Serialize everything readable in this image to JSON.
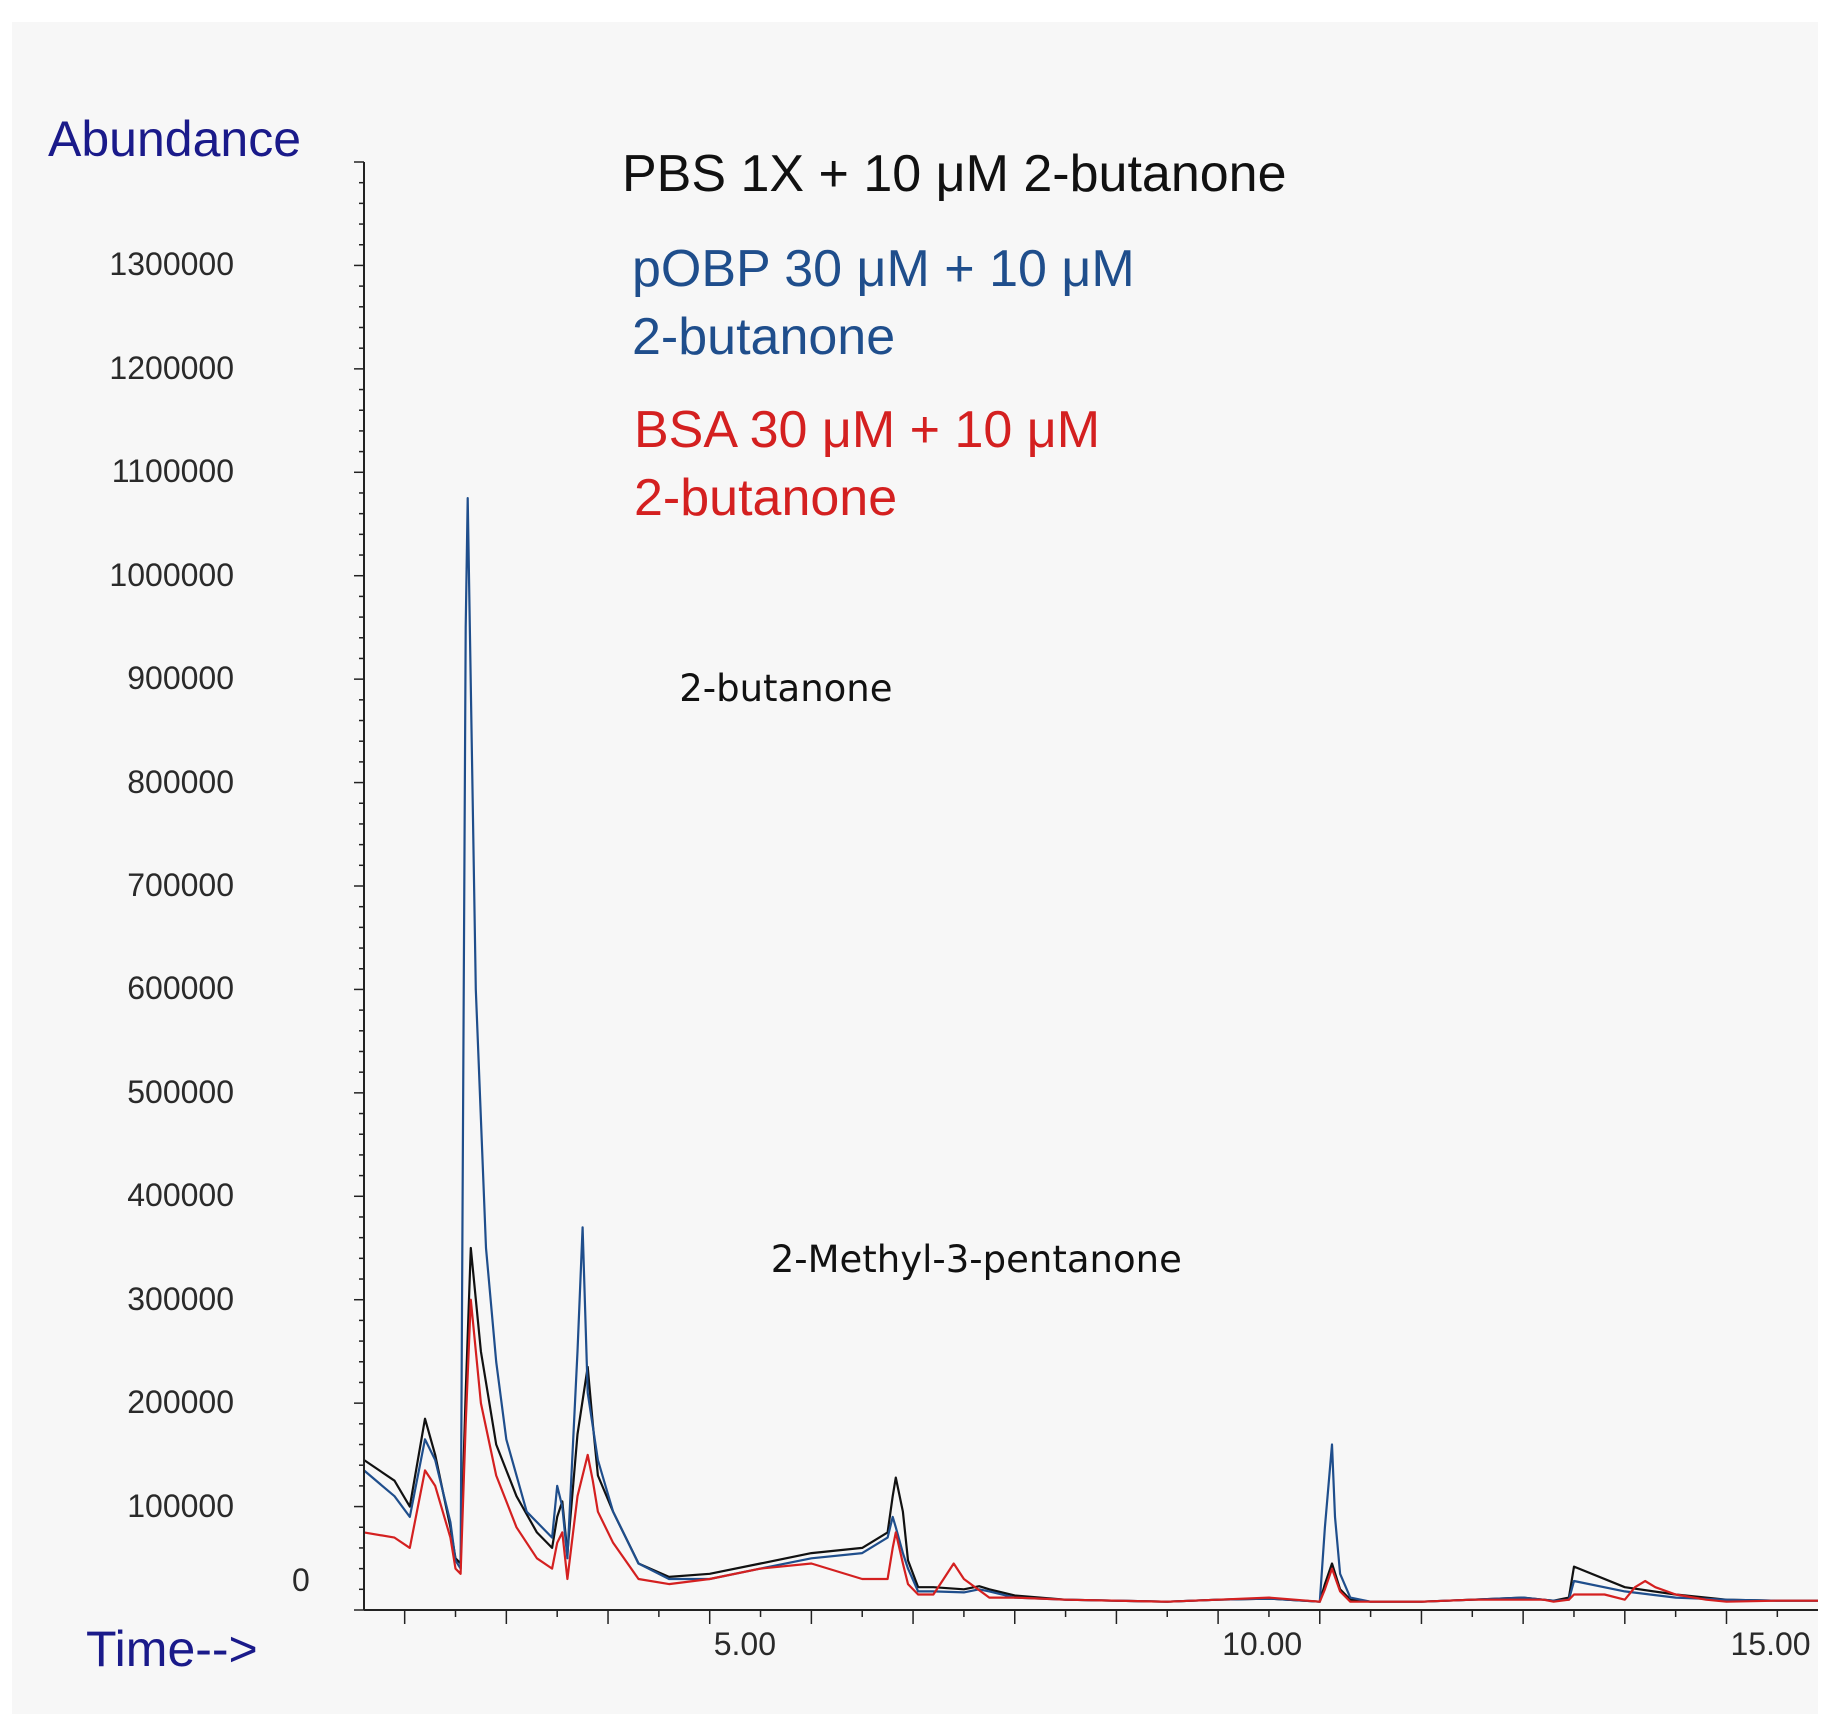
{
  "chart_data": {
    "type": "line",
    "ylabel": "Abundance",
    "xlabel": "Time-->",
    "xlim": [
      1.6,
      15.9
    ],
    "ylim": [
      0,
      1400000
    ],
    "yticks": [
      0,
      100000,
      200000,
      300000,
      400000,
      500000,
      600000,
      700000,
      800000,
      900000,
      1000000,
      1100000,
      1200000,
      1300000
    ],
    "xticks": [
      5.0,
      10.0,
      15.0
    ],
    "xtick_labels": [
      "5.00",
      "10.00",
      "15.00"
    ],
    "legend": {
      "placement": "top-center",
      "entries": [
        {
          "line1": "PBS 1X + 10 μM 2-butanone",
          "line2": ""
        },
        {
          "line1": "pOBP 30 μM + 10 μM",
          "line2": "2-butanone"
        },
        {
          "line1": "BSA 30 μM + 10 μM",
          "line2": "2-butanone"
        }
      ]
    },
    "annotations": [
      {
        "text": "2-butanone",
        "x": 4.7,
        "y": 890000
      },
      {
        "text": "2-Methyl-3-pentanone",
        "x": 5.6,
        "y": 338000
      }
    ],
    "series": [
      {
        "color": "#111111",
        "x": [
          1.6,
          1.9,
          2.05,
          2.2,
          2.3,
          2.45,
          2.5,
          2.55,
          2.6,
          2.65,
          2.75,
          2.9,
          3.1,
          3.3,
          3.45,
          3.5,
          3.55,
          3.6,
          3.7,
          3.8,
          3.85,
          3.9,
          4.05,
          4.3,
          4.6,
          5.0,
          5.5,
          6.0,
          6.5,
          6.75,
          6.8,
          6.83,
          6.9,
          6.95,
          7.05,
          7.2,
          7.5,
          7.65,
          7.75,
          8.0,
          8.5,
          9.5,
          10.0,
          10.5,
          11.0,
          11.05,
          11.12,
          11.2,
          11.3,
          11.5,
          12.0,
          12.5,
          13.0,
          13.2,
          13.3,
          13.45,
          13.5,
          14.0,
          14.5,
          15.0,
          15.5,
          15.9
        ],
        "y": [
          145000,
          125000,
          100000,
          185000,
          150000,
          80000,
          50000,
          45000,
          210000,
          350000,
          250000,
          160000,
          110000,
          75000,
          60000,
          90000,
          105000,
          55000,
          170000,
          235000,
          180000,
          130000,
          95000,
          45000,
          32000,
          35000,
          45000,
          55000,
          60000,
          75000,
          110000,
          128000,
          95000,
          48000,
          22000,
          22000,
          20000,
          23000,
          20000,
          14000,
          10000,
          8000,
          10000,
          11000,
          8000,
          25000,
          45000,
          20000,
          10000,
          8000,
          8000,
          10000,
          12000,
          10000,
          9000,
          12000,
          42000,
          22000,
          15000,
          10000,
          9000,
          9000
        ]
      },
      {
        "color": "#1f4e8c",
        "x": [
          1.6,
          1.9,
          2.05,
          2.2,
          2.3,
          2.45,
          2.5,
          2.55,
          2.6,
          2.62,
          2.7,
          2.8,
          2.9,
          3.0,
          3.2,
          3.45,
          3.5,
          3.55,
          3.6,
          3.7,
          3.75,
          3.8,
          3.9,
          4.05,
          4.3,
          4.6,
          5.0,
          5.5,
          6.0,
          6.5,
          6.75,
          6.8,
          6.83,
          6.9,
          6.95,
          7.05,
          7.2,
          7.5,
          7.65,
          7.75,
          8.0,
          8.5,
          9.5,
          10.0,
          10.5,
          11.0,
          11.05,
          11.12,
          11.15,
          11.2,
          11.3,
          11.5,
          12.0,
          12.5,
          13.0,
          13.2,
          13.3,
          13.45,
          13.5,
          14.0,
          14.5,
          15.0,
          15.5,
          15.9
        ],
        "y": [
          135000,
          110000,
          90000,
          165000,
          145000,
          85000,
          48000,
          40000,
          950000,
          1075000,
          600000,
          350000,
          240000,
          165000,
          95000,
          70000,
          120000,
          100000,
          50000,
          250000,
          370000,
          210000,
          145000,
          95000,
          45000,
          30000,
          30000,
          40000,
          50000,
          55000,
          70000,
          90000,
          80000,
          55000,
          40000,
          18000,
          18000,
          17000,
          20000,
          18000,
          12000,
          10000,
          8000,
          10000,
          11000,
          8000,
          80000,
          160000,
          90000,
          35000,
          12000,
          8000,
          8000,
          10000,
          12000,
          10000,
          9000,
          10000,
          28000,
          18000,
          12000,
          10000,
          9000,
          9000
        ]
      },
      {
        "color": "#d42020",
        "x": [
          1.6,
          1.9,
          2.05,
          2.2,
          2.3,
          2.45,
          2.5,
          2.55,
          2.6,
          2.65,
          2.75,
          2.9,
          3.1,
          3.3,
          3.45,
          3.5,
          3.55,
          3.6,
          3.7,
          3.8,
          3.85,
          3.9,
          4.05,
          4.3,
          4.6,
          5.0,
          5.5,
          6.0,
          6.5,
          6.75,
          6.8,
          6.83,
          6.9,
          6.95,
          7.05,
          7.2,
          7.3,
          7.4,
          7.5,
          7.75,
          8.0,
          8.5,
          9.5,
          10.0,
          10.5,
          11.0,
          11.05,
          11.12,
          11.2,
          11.3,
          11.5,
          12.0,
          12.5,
          13.0,
          13.2,
          13.3,
          13.45,
          13.5,
          13.8,
          14.0,
          14.1,
          14.2,
          14.3,
          14.5,
          14.8,
          15.0,
          15.5,
          15.9
        ],
        "y": [
          75000,
          70000,
          60000,
          135000,
          120000,
          70000,
          40000,
          35000,
          180000,
          300000,
          200000,
          130000,
          80000,
          50000,
          40000,
          65000,
          75000,
          30000,
          110000,
          150000,
          125000,
          95000,
          65000,
          30000,
          25000,
          30000,
          40000,
          45000,
          30000,
          30000,
          60000,
          75000,
          45000,
          25000,
          15000,
          15000,
          30000,
          45000,
          30000,
          12000,
          12000,
          10000,
          8000,
          10000,
          12000,
          8000,
          20000,
          40000,
          18000,
          8000,
          8000,
          8000,
          10000,
          10000,
          10000,
          8000,
          10000,
          15000,
          15000,
          10000,
          22000,
          28000,
          22000,
          15000,
          10000,
          8000,
          9000,
          9000
        ]
      }
    ]
  }
}
